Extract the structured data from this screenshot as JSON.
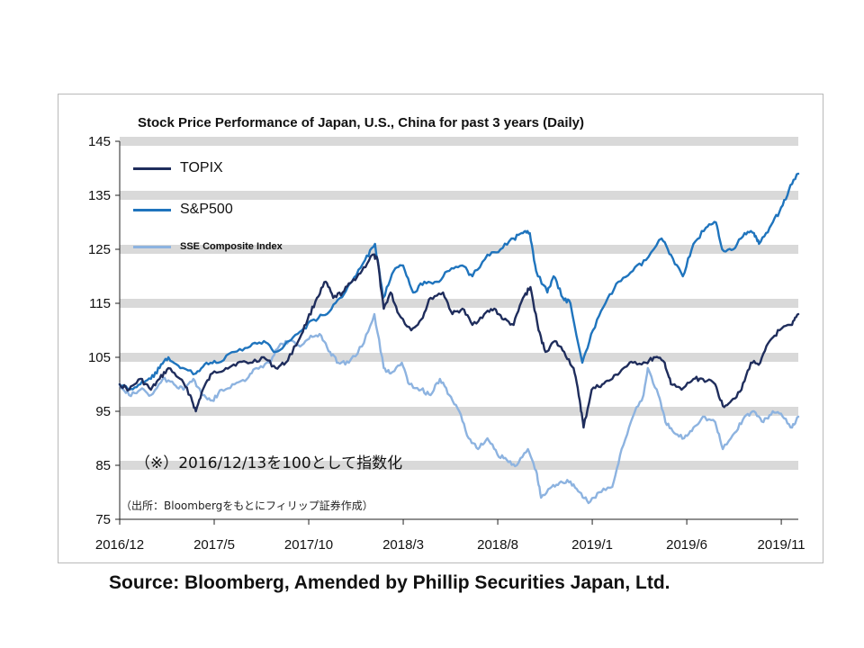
{
  "chart_data": {
    "type": "line",
    "title": "Stock Price Performance of Japan, U.S., China for past 3 years (Daily)",
    "ylim": [
      75,
      145
    ],
    "yticks": [
      75,
      85,
      95,
      105,
      115,
      125,
      135,
      145
    ],
    "xtick_labels": [
      "2016/12",
      "2017/5",
      "2017/10",
      "2018/3",
      "2018/8",
      "2019/1",
      "2019/6",
      "2019/11"
    ],
    "x_range": [
      "2016-12-13",
      "2019-12-05"
    ],
    "grid": "horizontal dashed bands",
    "legend_position": "top-left",
    "series": [
      {
        "name": "TOPIX",
        "color": "#1f2d5c",
        "points": [
          [
            "2016-12-13",
            100
          ],
          [
            "2016-12-28",
            99
          ],
          [
            "2017-01-15",
            101
          ],
          [
            "2017-02-01",
            99
          ],
          [
            "2017-02-15",
            101
          ],
          [
            "2017-03-01",
            103
          ],
          [
            "2017-03-20",
            101
          ],
          [
            "2017-04-05",
            98
          ],
          [
            "2017-04-14",
            95
          ],
          [
            "2017-04-25",
            99
          ],
          [
            "2017-05-10",
            102
          ],
          [
            "2017-06-01",
            103
          ],
          [
            "2017-06-20",
            104
          ],
          [
            "2017-07-10",
            104
          ],
          [
            "2017-08-01",
            105
          ],
          [
            "2017-08-20",
            103
          ],
          [
            "2017-09-05",
            104
          ],
          [
            "2017-09-25",
            108
          ],
          [
            "2017-10-10",
            112
          ],
          [
            "2017-10-25",
            116
          ],
          [
            "2017-11-08",
            119
          ],
          [
            "2017-11-20",
            116
          ],
          [
            "2017-12-05",
            117
          ],
          [
            "2017-12-20",
            119
          ],
          [
            "2018-01-05",
            121
          ],
          [
            "2018-01-22",
            124
          ],
          [
            "2018-01-30",
            123
          ],
          [
            "2018-02-09",
            114
          ],
          [
            "2018-02-20",
            117
          ],
          [
            "2018-03-05",
            113
          ],
          [
            "2018-03-25",
            110
          ],
          [
            "2018-04-10",
            112
          ],
          [
            "2018-04-25",
            116
          ],
          [
            "2018-05-15",
            117
          ],
          [
            "2018-05-30",
            113
          ],
          [
            "2018-06-15",
            114
          ],
          [
            "2018-07-01",
            111
          ],
          [
            "2018-07-20",
            113
          ],
          [
            "2018-08-05",
            114
          ],
          [
            "2018-08-20",
            112
          ],
          [
            "2018-09-05",
            111
          ],
          [
            "2018-09-20",
            116
          ],
          [
            "2018-10-02",
            118
          ],
          [
            "2018-10-15",
            110
          ],
          [
            "2018-10-26",
            106
          ],
          [
            "2018-11-10",
            108
          ],
          [
            "2018-11-25",
            106
          ],
          [
            "2018-12-10",
            103
          ],
          [
            "2018-12-20",
            97
          ],
          [
            "2018-12-26",
            92
          ],
          [
            "2019-01-08",
            99
          ],
          [
            "2019-01-25",
            100
          ],
          [
            "2019-02-10",
            101
          ],
          [
            "2019-02-28",
            103
          ],
          [
            "2019-03-15",
            104
          ],
          [
            "2019-04-05",
            104
          ],
          [
            "2019-04-20",
            105
          ],
          [
            "2019-05-05",
            104
          ],
          [
            "2019-05-15",
            100
          ],
          [
            "2019-06-01",
            99
          ],
          [
            "2019-06-20",
            101
          ],
          [
            "2019-07-05",
            101
          ],
          [
            "2019-07-25",
            100
          ],
          [
            "2019-08-06",
            96
          ],
          [
            "2019-08-20",
            97
          ],
          [
            "2019-09-05",
            99
          ],
          [
            "2019-09-20",
            104
          ],
          [
            "2019-10-05",
            104
          ],
          [
            "2019-10-20",
            108
          ],
          [
            "2019-11-05",
            110
          ],
          [
            "2019-11-25",
            111
          ],
          [
            "2019-12-05",
            113
          ]
        ]
      },
      {
        "name": "S&P500",
        "color": "#1f74bd",
        "points": [
          [
            "2016-12-13",
            100
          ],
          [
            "2016-12-28",
            99
          ],
          [
            "2017-01-15",
            100
          ],
          [
            "2017-02-01",
            101
          ],
          [
            "2017-02-15",
            103
          ],
          [
            "2017-03-01",
            105
          ],
          [
            "2017-03-20",
            103
          ],
          [
            "2017-04-14",
            102
          ],
          [
            "2017-05-01",
            104
          ],
          [
            "2017-05-20",
            104
          ],
          [
            "2017-06-15",
            106
          ],
          [
            "2017-07-10",
            107
          ],
          [
            "2017-08-01",
            108
          ],
          [
            "2017-08-20",
            106
          ],
          [
            "2017-09-10",
            108
          ],
          [
            "2017-10-01",
            110
          ],
          [
            "2017-10-20",
            112
          ],
          [
            "2017-11-10",
            113
          ],
          [
            "2017-12-01",
            116
          ],
          [
            "2017-12-20",
            119
          ],
          [
            "2018-01-10",
            123
          ],
          [
            "2018-01-26",
            126
          ],
          [
            "2018-02-08",
            116
          ],
          [
            "2018-02-25",
            121
          ],
          [
            "2018-03-12",
            122
          ],
          [
            "2018-03-28",
            117
          ],
          [
            "2018-04-15",
            119
          ],
          [
            "2018-05-05",
            119
          ],
          [
            "2018-05-25",
            121
          ],
          [
            "2018-06-15",
            122
          ],
          [
            "2018-07-01",
            120
          ],
          [
            "2018-07-25",
            124
          ],
          [
            "2018-08-15",
            125
          ],
          [
            "2018-09-05",
            127
          ],
          [
            "2018-09-20",
            128
          ],
          [
            "2018-10-01",
            128
          ],
          [
            "2018-10-11",
            121
          ],
          [
            "2018-10-29",
            117
          ],
          [
            "2018-11-08",
            120
          ],
          [
            "2018-11-23",
            116
          ],
          [
            "2018-12-05",
            115
          ],
          [
            "2018-12-24",
            104
          ],
          [
            "2019-01-10",
            110
          ],
          [
            "2019-01-30",
            115
          ],
          [
            "2019-02-20",
            119
          ],
          [
            "2019-03-15",
            121
          ],
          [
            "2019-04-05",
            123
          ],
          [
            "2019-04-30",
            127
          ],
          [
            "2019-05-15",
            124
          ],
          [
            "2019-06-03",
            120
          ],
          [
            "2019-06-20",
            126
          ],
          [
            "2019-07-10",
            129
          ],
          [
            "2019-07-26",
            130
          ],
          [
            "2019-08-05",
            125
          ],
          [
            "2019-08-23",
            125
          ],
          [
            "2019-09-10",
            128
          ],
          [
            "2019-09-25",
            128
          ],
          [
            "2019-10-03",
            126
          ],
          [
            "2019-10-20",
            129
          ],
          [
            "2019-11-05",
            132
          ],
          [
            "2019-11-20",
            136
          ],
          [
            "2019-12-05",
            139
          ]
        ]
      },
      {
        "name": "SSE Composite Index",
        "color": "#8db3e0",
        "points": [
          [
            "2016-12-13",
            100
          ],
          [
            "2016-12-28",
            98
          ],
          [
            "2017-01-15",
            99
          ],
          [
            "2017-02-01",
            98
          ],
          [
            "2017-02-20",
            101
          ],
          [
            "2017-03-10",
            100
          ],
          [
            "2017-03-25",
            99
          ],
          [
            "2017-04-10",
            101
          ],
          [
            "2017-04-25",
            98
          ],
          [
            "2017-05-10",
            97
          ],
          [
            "2017-05-25",
            99
          ],
          [
            "2017-06-15",
            100
          ],
          [
            "2017-07-05",
            101
          ],
          [
            "2017-07-20",
            103
          ],
          [
            "2017-08-10",
            104
          ],
          [
            "2017-08-25",
            107
          ],
          [
            "2017-09-10",
            108
          ],
          [
            "2017-09-28",
            107
          ],
          [
            "2017-10-15",
            109
          ],
          [
            "2017-11-01",
            109
          ],
          [
            "2017-11-15",
            106
          ],
          [
            "2017-11-28",
            104
          ],
          [
            "2017-12-15",
            104
          ],
          [
            "2018-01-05",
            107
          ],
          [
            "2018-01-25",
            113
          ],
          [
            "2018-02-09",
            103
          ],
          [
            "2018-02-20",
            102
          ],
          [
            "2018-03-10",
            104
          ],
          [
            "2018-03-22",
            100
          ],
          [
            "2018-04-10",
            99
          ],
          [
            "2018-04-25",
            98
          ],
          [
            "2018-05-10",
            101
          ],
          [
            "2018-05-25",
            98
          ],
          [
            "2018-06-10",
            95
          ],
          [
            "2018-06-25",
            90
          ],
          [
            "2018-07-10",
            88
          ],
          [
            "2018-07-25",
            90
          ],
          [
            "2018-08-10",
            87
          ],
          [
            "2018-08-25",
            86
          ],
          [
            "2018-09-10",
            85
          ],
          [
            "2018-09-28",
            88
          ],
          [
            "2018-10-11",
            84
          ],
          [
            "2018-10-19",
            79
          ],
          [
            "2018-11-05",
            81
          ],
          [
            "2018-11-20",
            82
          ],
          [
            "2018-12-05",
            82
          ],
          [
            "2018-12-20",
            80
          ],
          [
            "2019-01-03",
            78
          ],
          [
            "2019-01-20",
            80
          ],
          [
            "2019-02-10",
            81
          ],
          [
            "2019-02-25",
            88
          ],
          [
            "2019-03-15",
            94
          ],
          [
            "2019-04-01",
            98
          ],
          [
            "2019-04-08",
            103
          ],
          [
            "2019-04-25",
            98
          ],
          [
            "2019-05-06",
            93
          ],
          [
            "2019-05-20",
            91
          ],
          [
            "2019-06-05",
            90
          ],
          [
            "2019-06-20",
            92
          ],
          [
            "2019-07-05",
            94
          ],
          [
            "2019-07-25",
            93
          ],
          [
            "2019-08-06",
            88
          ],
          [
            "2019-08-25",
            91
          ],
          [
            "2019-09-10",
            94
          ],
          [
            "2019-09-25",
            95
          ],
          [
            "2019-10-10",
            93
          ],
          [
            "2019-10-25",
            95
          ],
          [
            "2019-11-10",
            94
          ],
          [
            "2019-11-25",
            92
          ],
          [
            "2019-12-05",
            94
          ]
        ]
      }
    ]
  },
  "notes": {
    "index_note": "（※）2016/12/13を100として指数化",
    "data_source_note": "（出所：Bloombergをもとにフィリップ証券作成）"
  },
  "footer": {
    "source": "Source: Bloomberg, Amended by Phillip Securities Japan, Ltd."
  },
  "colors": {
    "band": "#d9d9d9",
    "axis": "#222222"
  }
}
